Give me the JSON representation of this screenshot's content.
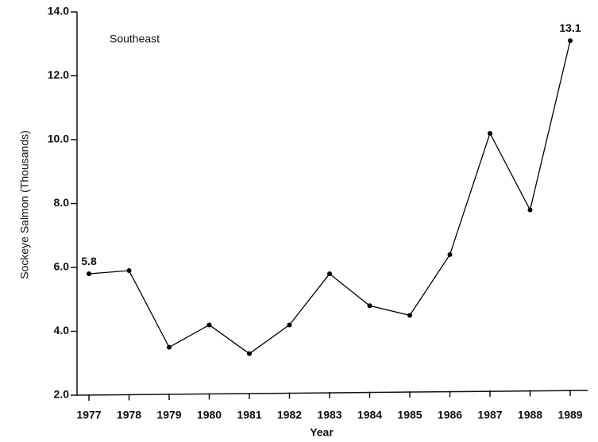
{
  "chart_data": {
    "type": "line",
    "annotation": "Southeast",
    "x_label": "Year",
    "y_label": "Sockeye Salmon (Thousands)",
    "categories": [
      "1977",
      "1978",
      "1979",
      "1980",
      "1981",
      "1982",
      "1983",
      "1984",
      "1985",
      "1986",
      "1987",
      "1988",
      "1989"
    ],
    "series": [
      {
        "name": "Southeast",
        "color": "#000000",
        "values": [
          5.8,
          5.9,
          3.5,
          4.2,
          3.3,
          4.2,
          5.8,
          4.8,
          4.5,
          6.4,
          10.2,
          7.8,
          13.1
        ],
        "value_labels": [
          "5.8",
          null,
          null,
          null,
          null,
          null,
          null,
          null,
          null,
          null,
          null,
          null,
          "13.1"
        ]
      }
    ],
    "ylim": [
      2,
      14
    ],
    "yticks": [
      {
        "value": 2,
        "label": "2.0"
      },
      {
        "value": 4,
        "label": "4.0"
      },
      {
        "value": 6,
        "label": "6.0"
      },
      {
        "value": 8,
        "label": "8.0"
      },
      {
        "value": 10,
        "label": "10.0"
      },
      {
        "value": 12,
        "label": "12.0"
      },
      {
        "value": 14,
        "label": "14.0"
      }
    ],
    "grid": false
  }
}
